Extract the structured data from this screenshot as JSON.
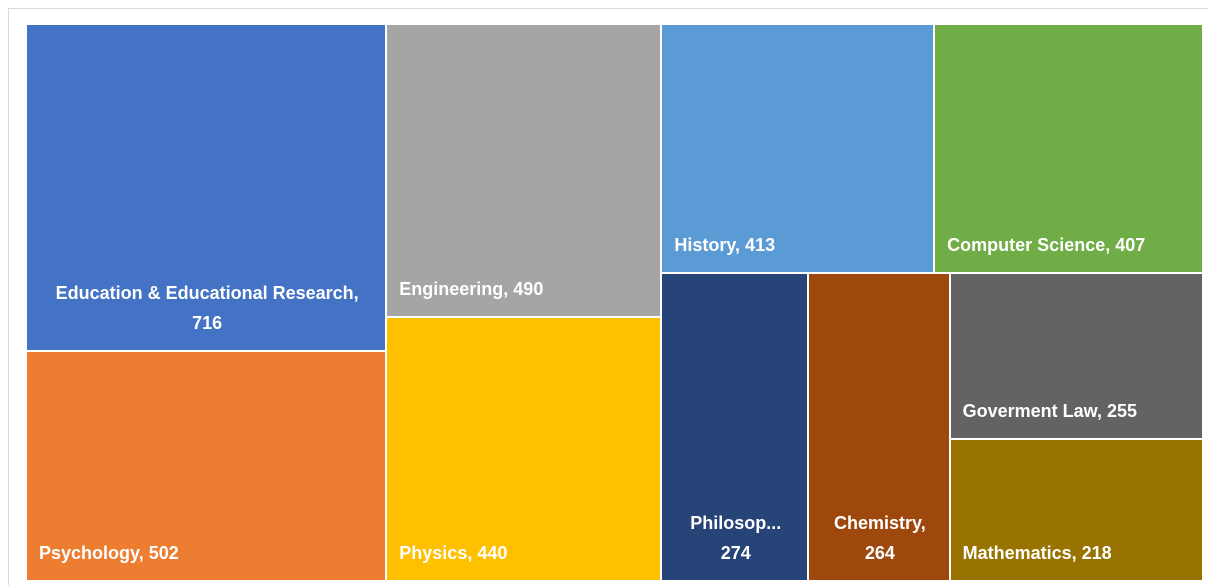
{
  "chart_data": {
    "type": "treemap",
    "value_labels": [
      "Education & Educational Research, 716",
      "Psychology, 502",
      "Engineering, 490",
      "Physics, 440",
      "History, 413",
      "Computer Science, 407",
      "Philosop... 274",
      "Chemistry, 264",
      "Goverment Law, 255",
      "Mathematics, 218"
    ],
    "values": [
      716,
      502,
      490,
      440,
      413,
      407,
      274,
      264,
      255,
      218
    ],
    "colors": [
      "#4472c4",
      "#ed7d31",
      "#a5a5a5",
      "#ffc000",
      "#5b9bd5",
      "#70ad47",
      "#264478",
      "#9e480e",
      "#636363",
      "#997300"
    ]
  }
}
